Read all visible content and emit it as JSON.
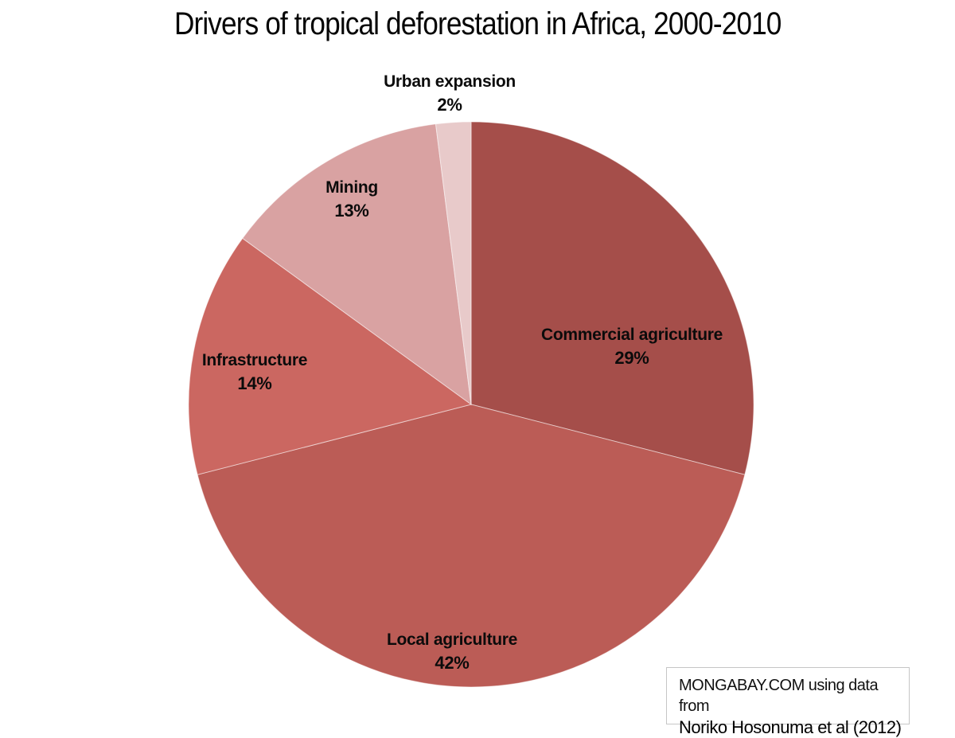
{
  "title": "Drivers of tropical deforestation in Africa, 2000-2010",
  "chart_data": {
    "type": "pie",
    "title": "Drivers of tropical deforestation in Africa, 2000-2010",
    "start_angle_deg": 0,
    "direction": "clockwise",
    "units": "percent",
    "total": 100,
    "slices": [
      {
        "label": "Commercial agriculture",
        "value": 29,
        "pct_label": "29%",
        "color": "#a54e4a"
      },
      {
        "label": "Local agriculture",
        "value": 42,
        "pct_label": "42%",
        "color": "#bb5c56"
      },
      {
        "label": "Infrastructure",
        "value": 14,
        "pct_label": "14%",
        "color": "#cb6761"
      },
      {
        "label": "Mining",
        "value": 13,
        "pct_label": "13%",
        "color": "#d9a2a2"
      },
      {
        "label": "Urban expansion",
        "value": 2,
        "pct_label": "2%",
        "color": "#e8caca"
      }
    ],
    "slice_separator_color": "rgba(255,255,255,0.5)",
    "label_color": "#0b0b0b",
    "legend": "none"
  },
  "credit": {
    "line1": "MONGABAY.COM using data from",
    "line2": "Noriko Hosonuma et al (2012)"
  }
}
